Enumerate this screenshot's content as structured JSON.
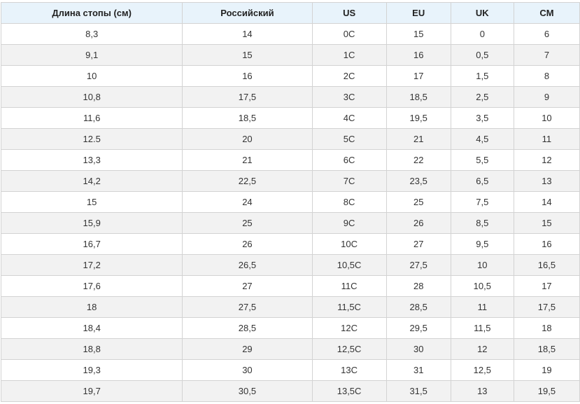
{
  "table": {
    "headers": [
      "Длина стопы (см)",
      "Российский",
      "US",
      "EU",
      "UK",
      "CM"
    ],
    "rows": [
      [
        "8,3",
        "14",
        "0C",
        "15",
        "0",
        "6"
      ],
      [
        "9,1",
        "15",
        "1C",
        "16",
        "0,5",
        "7"
      ],
      [
        "10",
        "16",
        "2C",
        "17",
        "1,5",
        "8"
      ],
      [
        "10,8",
        "17,5",
        "3C",
        "18,5",
        "2,5",
        "9"
      ],
      [
        "11,6",
        "18,5",
        "4C",
        "19,5",
        "3,5",
        "10"
      ],
      [
        "12.5",
        "20",
        "5C",
        "21",
        "4,5",
        "11"
      ],
      [
        "13,3",
        "21",
        "6C",
        "22",
        "5,5",
        "12"
      ],
      [
        "14,2",
        "22,5",
        "7C",
        "23,5",
        "6,5",
        "13"
      ],
      [
        "15",
        "24",
        "8C",
        "25",
        "7,5",
        "14"
      ],
      [
        "15,9",
        "25",
        "9C",
        "26",
        "8,5",
        "15"
      ],
      [
        "16,7",
        "26",
        "10C",
        "27",
        "9,5",
        "16"
      ],
      [
        "17,2",
        "26,5",
        "10,5C",
        "27,5",
        "10",
        "16,5"
      ],
      [
        "17,6",
        "27",
        "11C",
        "28",
        "10,5",
        "17"
      ],
      [
        "18",
        "27,5",
        "11,5C",
        "28,5",
        "11",
        "17,5"
      ],
      [
        "18,4",
        "28,5",
        "12C",
        "29,5",
        "11,5",
        "18"
      ],
      [
        "18,8",
        "29",
        "12,5C",
        "30",
        "12",
        "18,5"
      ],
      [
        "19,3",
        "30",
        "13C",
        "31",
        "12,5",
        "19"
      ],
      [
        "19,7",
        "30,5",
        "13,5C",
        "31,5",
        "13",
        "19,5"
      ]
    ]
  },
  "colors": {
    "header_bg": "#e8f3fb",
    "stripe_bg": "#f2f2f2",
    "border": "#d3d3d3"
  }
}
